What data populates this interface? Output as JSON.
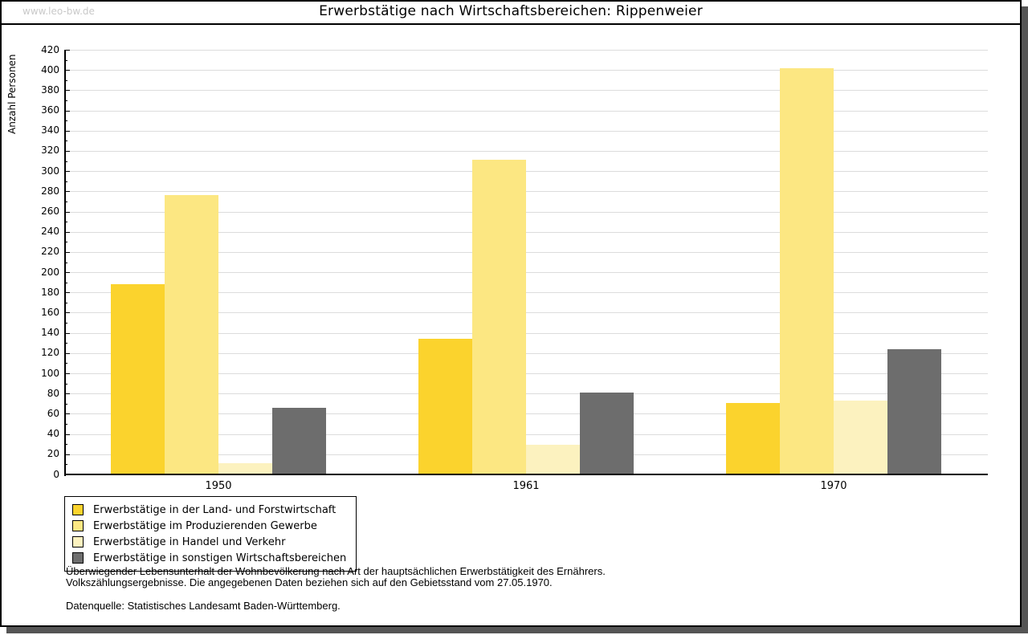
{
  "page": {
    "watermark": "www.leo-bw.de",
    "title": "Erwerbstätige nach Wirtschaftsbereichen: Rippenweier"
  },
  "chart_data": {
    "type": "bar",
    "title": "Erwerbstätige nach Wirtschaftsbereichen: Rippenweier",
    "xlabel": "",
    "ylabel": "Anzahl Personen",
    "categories": [
      "1950",
      "1961",
      "1970"
    ],
    "series": [
      {
        "name": "Erwerbstätige in der Land- und Forstwirtschaft",
        "color": "#FBD32D",
        "values": [
          188,
          134,
          71
        ]
      },
      {
        "name": "Erwerbstätige im Produzierenden Gewerbe",
        "color": "#FCE782",
        "values": [
          276,
          311,
          402
        ]
      },
      {
        "name": "Erwerbstätige in Handel und Verkehr",
        "color": "#FCF2BF",
        "values": [
          11,
          29,
          73
        ]
      },
      {
        "name": "Erwerbstätige in sonstigen Wirtschaftsbereichen",
        "color": "#6D6D6D",
        "values": [
          66,
          81,
          124
        ]
      }
    ],
    "ylim": [
      0,
      420
    ],
    "ytick_step": 20,
    "yminor_step": 10,
    "grid": true,
    "legend_position": "bottom-left"
  },
  "footer": {
    "line1": "Überwiegender Lebensunterhalt der Wohnbevölkerung nach Art der hauptsächlichen Erwerbstätigkeit des Ernährers.",
    "line2": "Volkszählungsergebnisse. Die angegebenen Daten beziehen sich auf den Gebietsstand vom 27.05.1970.",
    "source": "Datenquelle: Statistisches Landesamt Baden-Württemberg."
  },
  "colors": {
    "axis": "#000000",
    "grid": "#DCDCDC",
    "watermark": "#C9C9C9",
    "shadow": "#555555",
    "background": "#FFFFFF"
  }
}
